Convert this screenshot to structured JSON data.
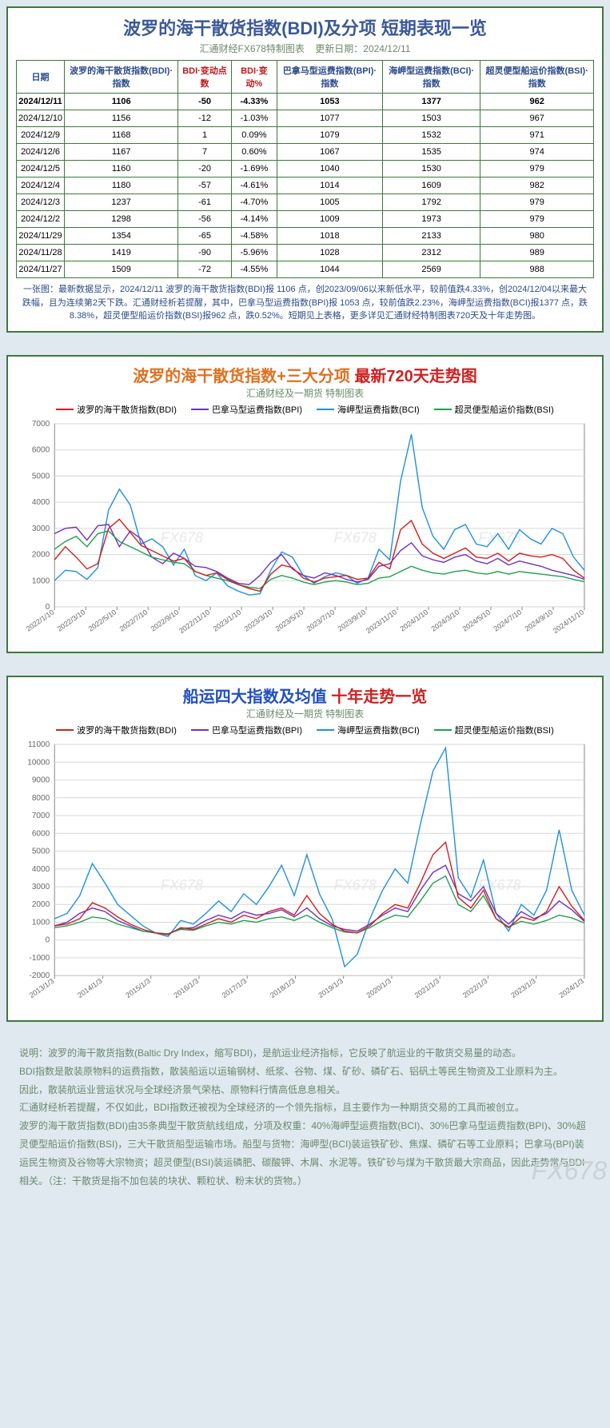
{
  "table_panel": {
    "title": "波罗的海干散货指数(BDI)及分项 短期表现一览",
    "subtitle_source": "汇通财经FX678特制图表",
    "subtitle_date_label": "更新日期：",
    "subtitle_date": "2024/12/11",
    "columns": [
      {
        "label": "日期",
        "red": false
      },
      {
        "label": "波罗的海干散货指数(BDI)·指数",
        "red": false
      },
      {
        "label": "BDI·变动点数",
        "red": true
      },
      {
        "label": "BDI·变动%",
        "red": true
      },
      {
        "label": "巴拿马型运费指数(BPI)·指数",
        "red": false
      },
      {
        "label": "海岬型运费指数(BCI)·指数",
        "red": false
      },
      {
        "label": "超灵便型船运价指数(BSI)·指数",
        "red": false
      }
    ],
    "rows": [
      {
        "bold": true,
        "cells": [
          "2024/12/11",
          "1106",
          "-50",
          "-4.33%",
          "1053",
          "1377",
          "962"
        ]
      },
      {
        "bold": false,
        "cells": [
          "2024/12/10",
          "1156",
          "-12",
          "-1.03%",
          "1077",
          "1503",
          "967"
        ]
      },
      {
        "bold": false,
        "cells": [
          "2024/12/9",
          "1168",
          "1",
          "0.09%",
          "1079",
          "1532",
          "971"
        ]
      },
      {
        "bold": false,
        "cells": [
          "2024/12/6",
          "1167",
          "7",
          "0.60%",
          "1067",
          "1535",
          "974"
        ]
      },
      {
        "bold": false,
        "cells": [
          "2024/12/5",
          "1160",
          "-20",
          "-1.69%",
          "1040",
          "1530",
          "979"
        ]
      },
      {
        "bold": false,
        "cells": [
          "2024/12/4",
          "1180",
          "-57",
          "-4.61%",
          "1014",
          "1609",
          "982"
        ]
      },
      {
        "bold": false,
        "cells": [
          "2024/12/3",
          "1237",
          "-61",
          "-4.70%",
          "1005",
          "1792",
          "979"
        ]
      },
      {
        "bold": false,
        "cells": [
          "2024/12/2",
          "1298",
          "-56",
          "-4.14%",
          "1009",
          "1973",
          "979"
        ]
      },
      {
        "bold": false,
        "cells": [
          "2024/11/29",
          "1354",
          "-65",
          "-4.58%",
          "1018",
          "2133",
          "980"
        ]
      },
      {
        "bold": false,
        "cells": [
          "2024/11/28",
          "1419",
          "-90",
          "-5.96%",
          "1028",
          "2312",
          "989"
        ]
      },
      {
        "bold": false,
        "cells": [
          "2024/11/27",
          "1509",
          "-72",
          "-4.55%",
          "1044",
          "2569",
          "988"
        ]
      }
    ],
    "note": "一张图：最新数据显示，2024/12/11 波罗的海干散货指数(BDI)报 1106 点，创2023/09/06以来新低水平，较前值跌4.33%，创2024/12/04以来最大跌幅，且为连续第2天下跌。汇通财经析若提醒，其中，巴拿马型运费指数(BPI)报 1053 点，较前值跌2.23%，海岬型运费指数(BCI)报1377 点，跌8.38%，超灵便型船运价指数(BSI)报962 点，跌0.52%。短期见上表格，更多详见汇通财经特制图表720天及十年走势图。"
  },
  "chart720": {
    "title_part1": "波罗的海干散货指数+三大分项",
    "title_part2": "最新720天走势图",
    "subtitle": "汇通财经及一期货 特制图表",
    "legend": [
      {
        "label": "波罗的海干散货指数(BDI)",
        "color": "#d02020"
      },
      {
        "label": "巴拿马型运费指数(BPI)",
        "color": "#7030c0"
      },
      {
        "label": "海岬型运费指数(BCI)",
        "color": "#2090e0"
      },
      {
        "label": "超灵便型船运价指数(BSI)",
        "color": "#20a050"
      }
    ],
    "ylim": [
      0,
      7000
    ],
    "yticks": [
      0,
      1000,
      2000,
      3000,
      4000,
      5000,
      6000,
      7000
    ],
    "xticks": [
      "2022/1/10",
      "2022/3/10",
      "2022/5/10",
      "2022/7/10",
      "2022/9/10",
      "2022/11/10",
      "2023/1/10",
      "2023/3/10",
      "2023/5/10",
      "2023/7/10",
      "2023/9/10",
      "2023/11/10",
      "2024/1/10",
      "2024/3/10",
      "2024/5/10",
      "2024/7/10",
      "2024/9/10",
      "2024/11/10"
    ],
    "grid_color": "#d8d8d8",
    "background": "#ffffff",
    "watermark": "FX678",
    "series": {
      "bdi": [
        1800,
        2300,
        1900,
        1450,
        1650,
        3000,
        3350,
        2850,
        2350,
        2150,
        1950,
        1750,
        1850,
        1350,
        1200,
        1300,
        1050,
        850,
        700,
        600,
        1250,
        1600,
        1500,
        1100,
        950,
        1100,
        1150,
        1200,
        1050,
        1100,
        1700,
        1450,
        2950,
        3300,
        2400,
        2050,
        1850,
        2050,
        2250,
        1900,
        1850,
        2050,
        1750,
        2050,
        1950,
        1900,
        2000,
        1850,
        1400,
        1100
      ],
      "bpi": [
        2800,
        3000,
        3050,
        2550,
        3100,
        3150,
        2300,
        2900,
        2600,
        1900,
        1650,
        2050,
        1850,
        1550,
        1500,
        1350,
        1100,
        900,
        850,
        1200,
        1700,
        2000,
        1450,
        1200,
        1100,
        1300,
        1200,
        1050,
        950,
        1050,
        1550,
        1650,
        2150,
        2450,
        1950,
        1800,
        1700,
        1900,
        2000,
        1750,
        1650,
        1850,
        1600,
        1750,
        1650,
        1550,
        1400,
        1300,
        1200,
        1050
      ],
      "bci": [
        1000,
        1400,
        1350,
        1050,
        1500,
        3700,
        4500,
        3900,
        2400,
        2600,
        2300,
        1600,
        2200,
        1200,
        1000,
        1300,
        800,
        600,
        450,
        500,
        1400,
        2100,
        1900,
        1200,
        900,
        1150,
        1300,
        1200,
        900,
        1100,
        2200,
        1800,
        4800,
        6600,
        3800,
        2700,
        2200,
        2950,
        3150,
        2400,
        2300,
        2800,
        2200,
        2950,
        2600,
        2400,
        3000,
        2800,
        1900,
        1400
      ],
      "bsi": [
        2200,
        2500,
        2700,
        2300,
        2800,
        2900,
        2500,
        2300,
        2100,
        1900,
        1800,
        1700,
        1650,
        1350,
        1200,
        1100,
        1000,
        850,
        750,
        700,
        1050,
        1200,
        1100,
        950,
        850,
        950,
        1000,
        950,
        850,
        900,
        1100,
        1150,
        1350,
        1550,
        1400,
        1300,
        1250,
        1350,
        1400,
        1300,
        1250,
        1350,
        1250,
        1350,
        1300,
        1250,
        1200,
        1150,
        1050,
        960
      ]
    }
  },
  "chart10y": {
    "title_part1": "船运四大指数及均值",
    "title_part2": "十年走势一览",
    "subtitle": "汇通财经及一期货 特制图表",
    "legend": [
      {
        "label": "波罗的海干散货指数(BDI)",
        "color": "#d02020"
      },
      {
        "label": "巴拿马型运费指数(BPI)",
        "color": "#7030c0"
      },
      {
        "label": "海岬型运费指数(BCI)",
        "color": "#2090e0"
      },
      {
        "label": "超灵便型船运价指数(BSI)",
        "color": "#20a050"
      }
    ],
    "ylim": [
      -2000,
      11000
    ],
    "yticks": [
      -2000,
      -1000,
      0,
      1000,
      2000,
      3000,
      4000,
      5000,
      6000,
      7000,
      8000,
      9000,
      10000,
      11000
    ],
    "xticks": [
      "2013/1/3",
      "2014/1/3",
      "2015/1/3",
      "2016/1/3",
      "2017/1/3",
      "2018/1/3",
      "2019/1/3",
      "2020/1/3",
      "2021/1/3",
      "2022/1/3",
      "2023/1/3",
      "2024/1/3"
    ],
    "grid_color": "#d8d8d8",
    "background": "#ffffff",
    "watermark": "FX678",
    "series": {
      "bdi": [
        800,
        900,
        1200,
        2100,
        1800,
        1300,
        900,
        600,
        400,
        300,
        700,
        600,
        900,
        1200,
        1000,
        1400,
        1200,
        1600,
        1800,
        1400,
        2500,
        1500,
        900,
        500,
        400,
        800,
        1500,
        2000,
        1800,
        3200,
        4800,
        5500,
        2400,
        1800,
        2800,
        1200,
        700,
        1300,
        1100,
        1600,
        3000,
        1900,
        1100
      ],
      "bpi": [
        800,
        1000,
        1500,
        1800,
        1600,
        1100,
        800,
        500,
        400,
        350,
        650,
        700,
        1100,
        1400,
        1200,
        1600,
        1400,
        1500,
        1700,
        1300,
        1800,
        1200,
        800,
        600,
        500,
        900,
        1400,
        1800,
        1600,
        2800,
        3800,
        4200,
        2600,
        2200,
        3000,
        1500,
        900,
        1600,
        1200,
        1500,
        2200,
        1700,
        1050
      ],
      "bci": [
        1200,
        1500,
        2500,
        4300,
        3200,
        2000,
        1400,
        800,
        400,
        200,
        1100,
        900,
        1500,
        2200,
        1600,
        2600,
        2000,
        3000,
        4200,
        2500,
        4800,
        2600,
        1200,
        -1500,
        -800,
        1200,
        2800,
        4000,
        3200,
        6500,
        9500,
        10800,
        3500,
        2400,
        4500,
        1500,
        500,
        2000,
        1400,
        2800,
        6200,
        2800,
        1400
      ],
      "bsi": [
        700,
        800,
        1000,
        1300,
        1200,
        900,
        700,
        500,
        400,
        350,
        600,
        550,
        800,
        1000,
        900,
        1100,
        1000,
        1200,
        1300,
        1100,
        1400,
        1000,
        700,
        450,
        400,
        700,
        1100,
        1400,
        1300,
        2200,
        3200,
        3600,
        2000,
        1600,
        2500,
        1200,
        750,
        1050,
        900,
        1100,
        1400,
        1250,
        960
      ]
    }
  },
  "footer": {
    "p1": "说明：波罗的海干散货指数(Baltic Dry Index，缩写BDI)，是航运业经济指标，它反映了航运业的干散货交易量的动态。",
    "p2": "BDI指数是散装原物料的运费指数，散装船运以运输钢材、纸浆、谷物、煤、矿砂、磷矿石、铝矾土等民生物资及工业原料为主。",
    "p3": "因此，散装航运业营运状况与全球经济景气荣枯、原物料行情高低息息相关。",
    "p4": "汇通财经析若提醒，不仅如此，BDI指数还被视为全球经济的一个领先指标，且主要作为一种期货交易的工具而被创立。",
    "p5": "波罗的海干散货指数(BDI)由35条典型干散货航线组成，分项及权重：40%海岬型运费指数(BCI)、30%巴拿马型运费指数(BPI)、30%超灵便型船运价指数(BSI)，三大干散货船型运输市场。船型与货物：海岬型(BCI)装运铁矿砂、焦煤、磷矿石等工业原料；巴拿马(BPI)装运民生物资及谷物等大宗物资；超灵便型(BSI)装运磷肥、碳酸钾、木屑、水泥等。铁矿砂与煤为干散货最大宗商品，因此走势常与BDI相关。（注：干散货是指不加包装的块状、颗粒状、粉末状的货物。）",
    "watermark": "FX678"
  },
  "colors": {
    "border": "#3b7a3b",
    "title_blue": "#3b5998",
    "header_red": "#c01818",
    "subtitle_green": "#6a8a6a",
    "page_bg": "#e0e8f0"
  }
}
